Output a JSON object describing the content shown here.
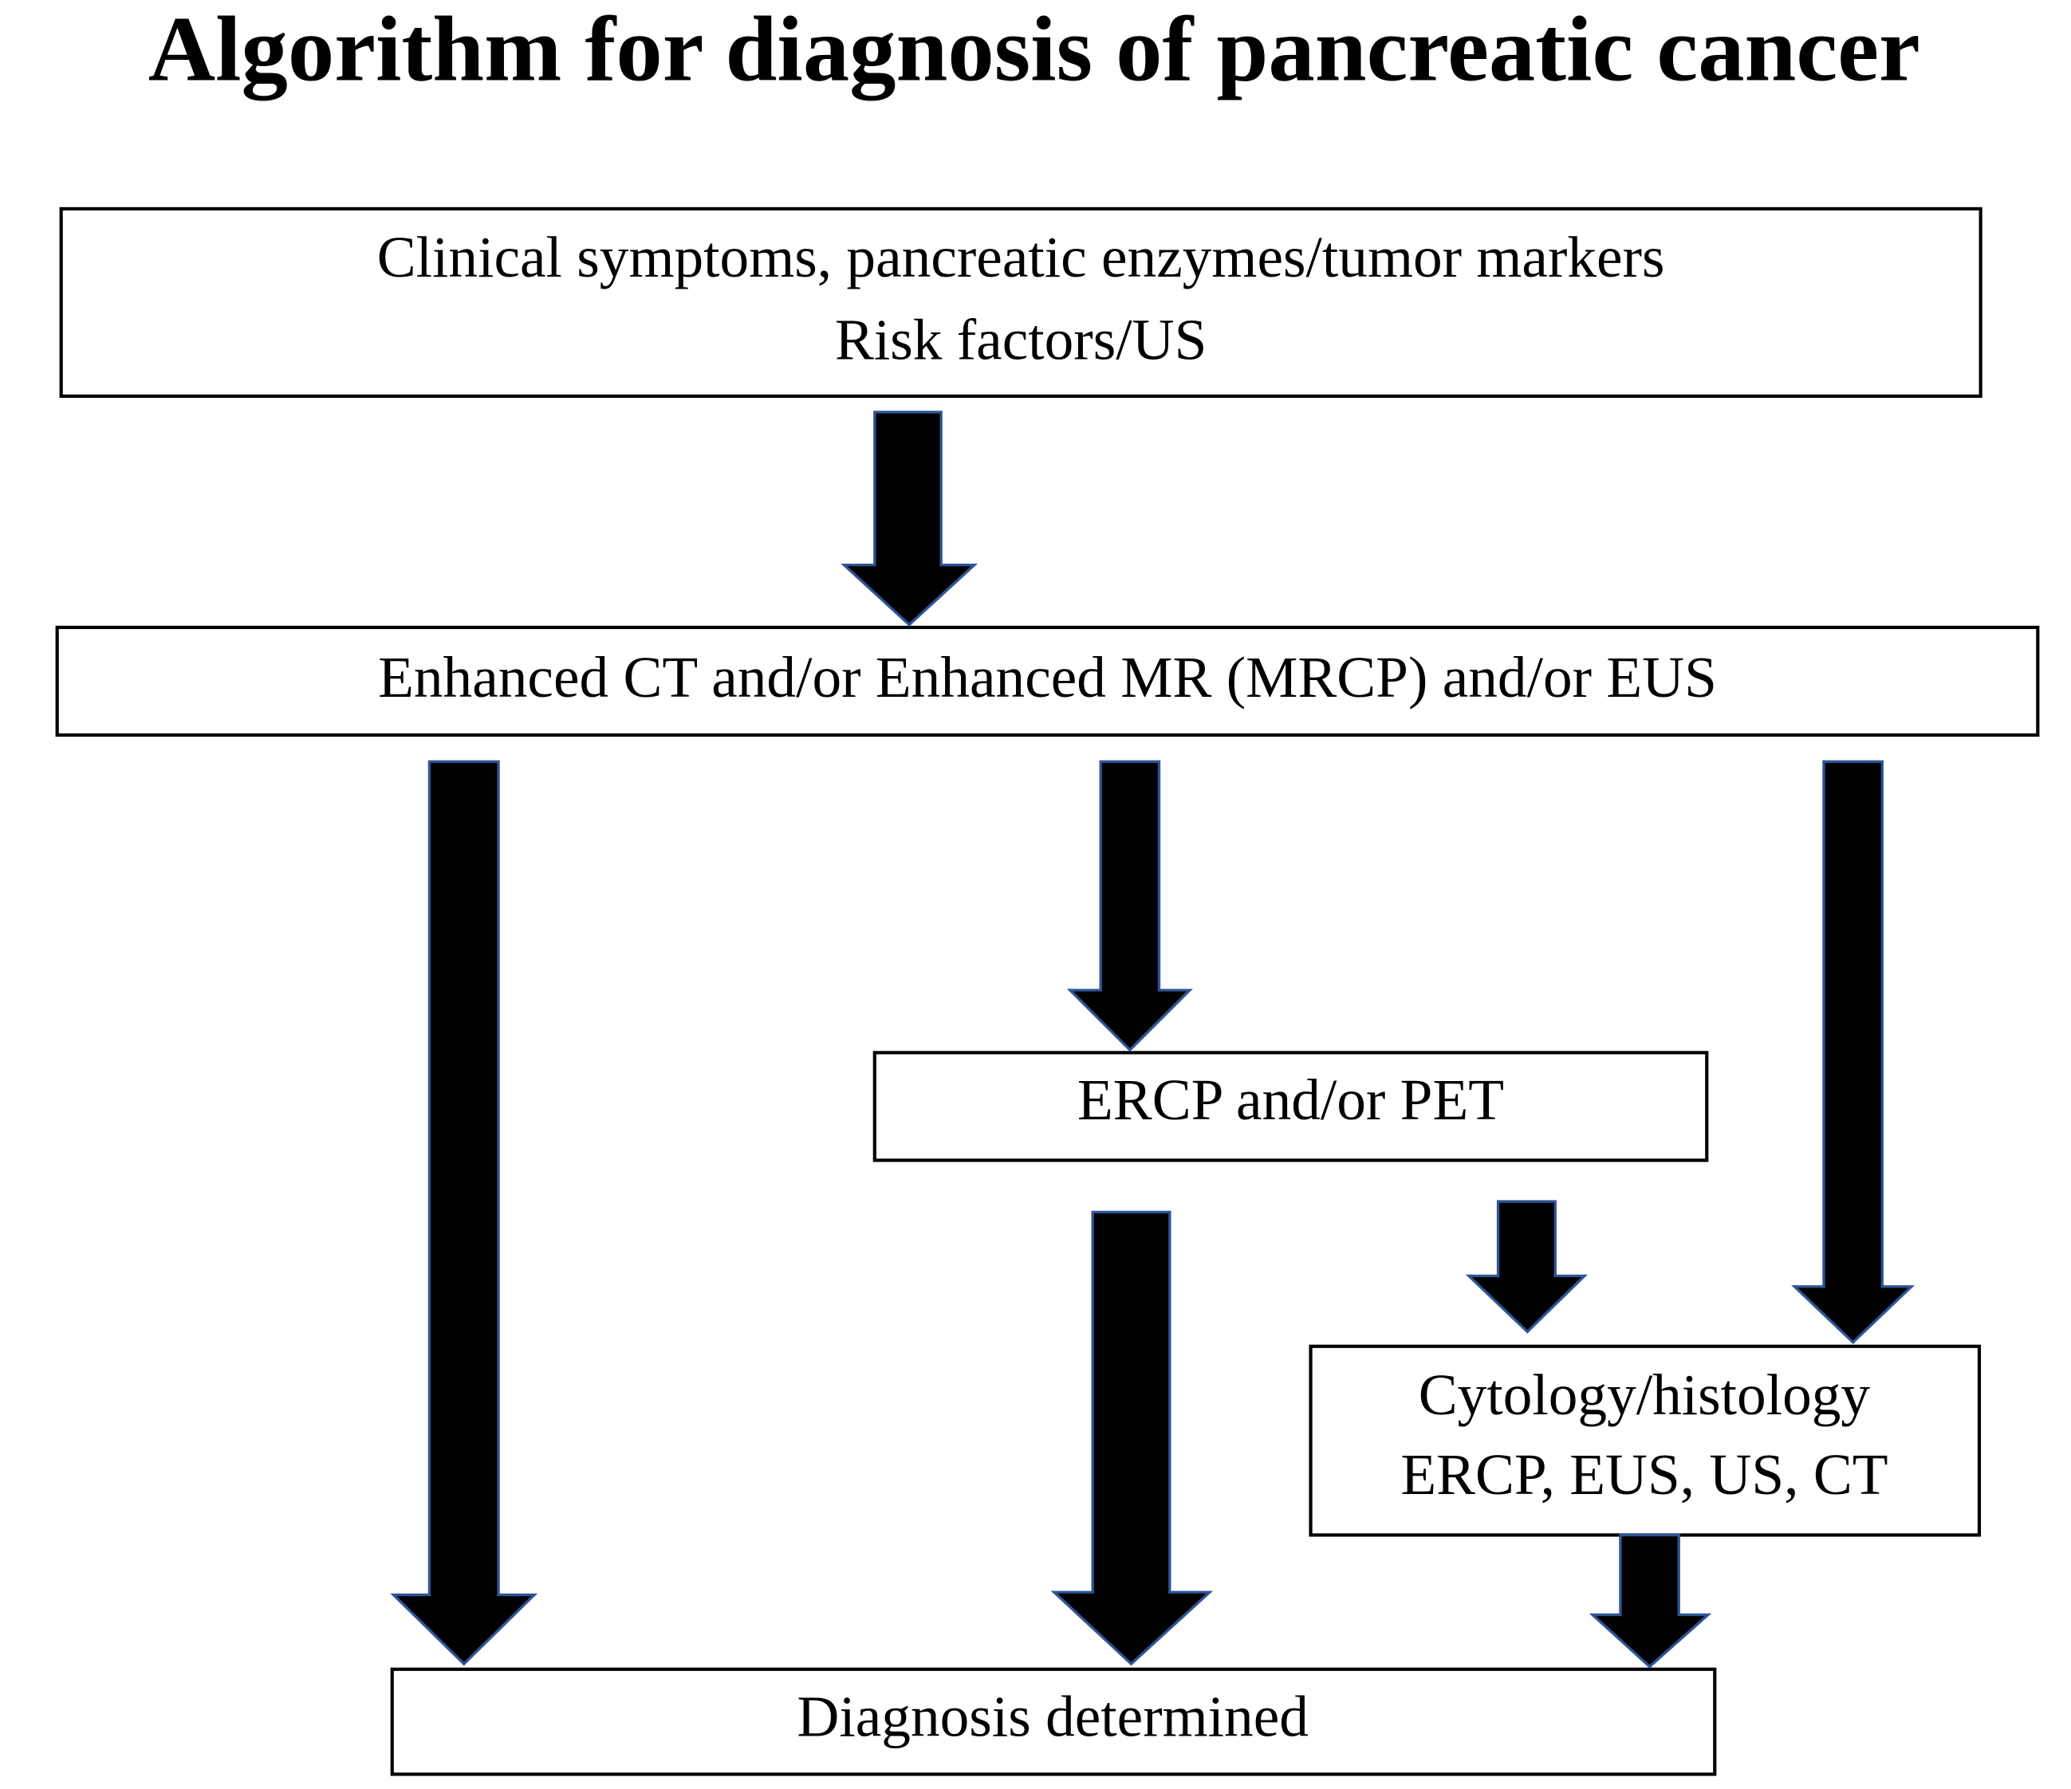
{
  "title": "Algorithm for diagnosis of pancreatic cancer",
  "nodes": [
    {
      "lines": [
        "Clinical symptoms, pancreatic enzymes/tumor markers",
        "Risk factors/US"
      ]
    },
    {
      "lines": [
        "Enhanced CT and/or Enhanced MR (MRCP) and/or EUS"
      ]
    },
    {
      "lines": [
        "ERCP and/or PET"
      ]
    },
    {
      "lines": [
        "Cytology/histology",
        "ERCP, EUS, US, CT"
      ]
    },
    {
      "lines": [
        "Diagnosis determined"
      ]
    }
  ]
}
